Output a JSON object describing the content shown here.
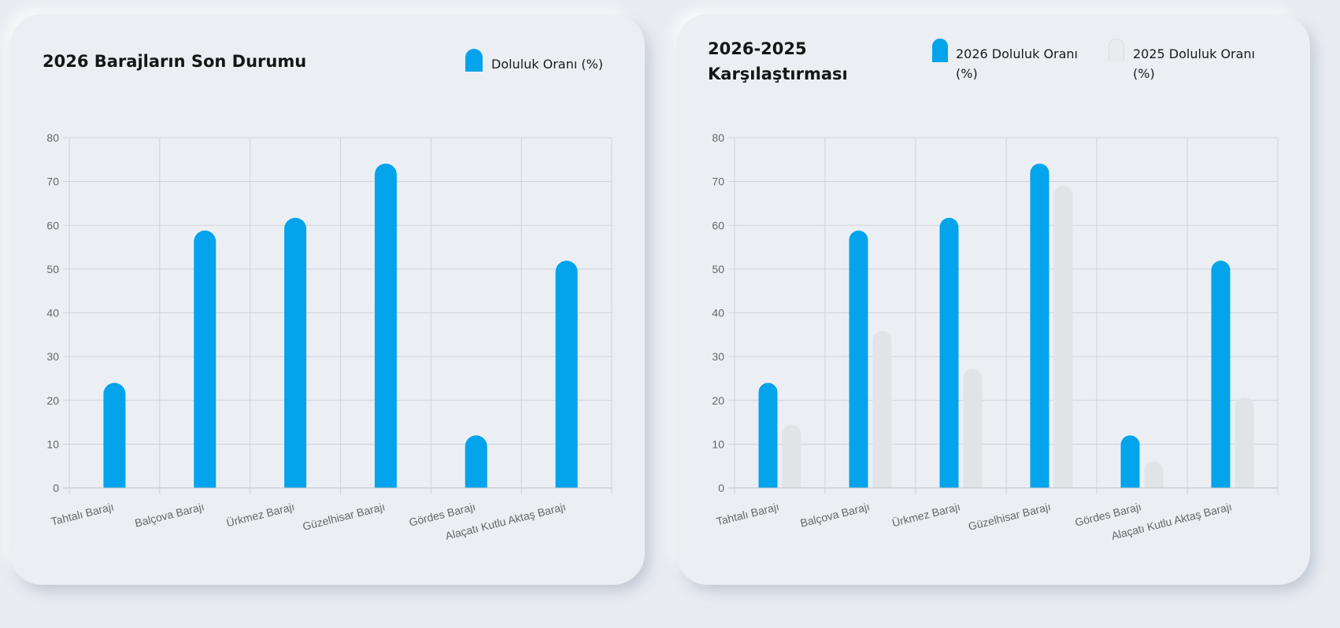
{
  "colors": {
    "series_2026": "#03a4eb",
    "series_2025": "#e1e4e7",
    "grid": "#cfd3d9"
  },
  "chart_data": [
    {
      "type": "bar",
      "title": "2026 Barajların Son Durumu",
      "categories": [
        "Tahtalı Barajı",
        "Balçova Barajı",
        "Ürkmez Barajı",
        "Güzelhisar Barajı",
        "Gördes Barajı",
        "Alaçatı Kutlu Aktaş Barajı"
      ],
      "series": [
        {
          "name": "Doluluk Oranı (%)",
          "values": [
            24.0,
            58.8,
            61.7,
            74.1,
            12.0,
            51.9
          ]
        }
      ],
      "ylim": [
        0,
        80
      ],
      "yticks": [
        "0",
        "10",
        "20",
        "30",
        "40",
        "50",
        "60",
        "70",
        "80"
      ],
      "grid": true,
      "legend": "top-right",
      "xlabel": "",
      "ylabel": ""
    },
    {
      "type": "bar",
      "title_lines": [
        "2026-2025",
        "Karşılaştırması"
      ],
      "categories": [
        "Tahtalı Barajı",
        "Balçova Barajı",
        "Ürkmez Barajı",
        "Güzelhisar Barajı",
        "Gördes Barajı",
        "Alaçatı Kutlu Aktaş Barajı"
      ],
      "series": [
        {
          "name": "2026 Doluluk Oranı (%)",
          "name_lines": [
            "2026 Doluluk Oranı",
            "(%)"
          ],
          "values": [
            24.0,
            58.8,
            61.7,
            74.1,
            12.0,
            51.9
          ]
        },
        {
          "name": "2025 Doluluk Oranı (%)",
          "name_lines": [
            "2025 Doluluk Oranı",
            "(%)"
          ],
          "values": [
            14.5,
            35.9,
            27.2,
            69.0,
            6.1,
            20.7
          ]
        }
      ],
      "ylim": [
        0,
        80
      ],
      "yticks": [
        "0",
        "10",
        "20",
        "30",
        "40",
        "50",
        "60",
        "70",
        "80"
      ],
      "grid": true,
      "legend": "top-right",
      "xlabel": "",
      "ylabel": ""
    }
  ]
}
